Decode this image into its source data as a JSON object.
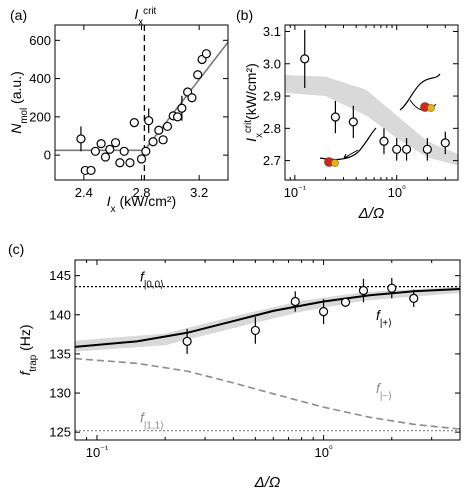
{
  "chart_data": [
    {
      "panel": "(a)",
      "type": "scatter",
      "xlabel_main": "I",
      "xlabel_sub": "x",
      "xlabel_unit": " (kW/cm²)",
      "ylabel_main": "N",
      "ylabel_sub": "mol",
      "ylabel_unit": " (a.u.)",
      "xlim": [
        2.2,
        3.4
      ],
      "ylim": [
        -130,
        680
      ],
      "xticks": [
        2.4,
        2.8,
        3.2
      ],
      "xtick_labels": [
        "2.4",
        "2.8",
        "3.2"
      ],
      "yticks": [
        0,
        200,
        400,
        600
      ],
      "ytick_labels": [
        "0",
        "200",
        "400",
        "600"
      ],
      "vline": {
        "x": 2.82,
        "label_main": "I",
        "label_sub": "x",
        "label_sup": "crit"
      },
      "fit": [
        {
          "x": 2.2,
          "y": 25
        },
        {
          "x": 2.82,
          "y": 25
        },
        {
          "x": 3.4,
          "y": 590
        }
      ],
      "points": [
        {
          "x": 2.38,
          "y": 85,
          "err": 65
        },
        {
          "x": 2.41,
          "y": -80
        },
        {
          "x": 2.45,
          "y": -80
        },
        {
          "x": 2.48,
          "y": 20
        },
        {
          "x": 2.52,
          "y": 60
        },
        {
          "x": 2.55,
          "y": -10
        },
        {
          "x": 2.58,
          "y": 30
        },
        {
          "x": 2.62,
          "y": 65
        },
        {
          "x": 2.65,
          "y": -40
        },
        {
          "x": 2.68,
          "y": 20
        },
        {
          "x": 2.72,
          "y": -40
        },
        {
          "x": 2.75,
          "y": 170
        },
        {
          "x": 2.8,
          "y": -20
        },
        {
          "x": 2.83,
          "y": 20
        },
        {
          "x": 2.85,
          "y": 180,
          "err": 65
        },
        {
          "x": 2.88,
          "y": 70
        },
        {
          "x": 2.92,
          "y": 130
        },
        {
          "x": 2.95,
          "y": 80
        },
        {
          "x": 2.98,
          "y": 150
        },
        {
          "x": 3.02,
          "y": 205
        },
        {
          "x": 3.05,
          "y": 200
        },
        {
          "x": 3.08,
          "y": 245,
          "err": 65
        },
        {
          "x": 3.12,
          "y": 330
        },
        {
          "x": 3.15,
          "y": 300
        },
        {
          "x": 3.19,
          "y": 420
        },
        {
          "x": 3.22,
          "y": 500
        },
        {
          "x": 3.25,
          "y": 530
        }
      ]
    },
    {
      "panel": "(b)",
      "type": "scatter",
      "xscale": "log",
      "xlabel": "Δ/Ω",
      "ylabel_main": "I",
      "ylabel_sub": "x",
      "ylabel_sup": "crit",
      "ylabel_unit": "(kW/cm²)",
      "xlim": [
        0.08,
        4.0
      ],
      "ylim": [
        2.64,
        3.12
      ],
      "xticks": [
        0.1,
        1
      ],
      "xtick_labels": [
        "10⁻¹",
        "10⁰"
      ],
      "yticks": [
        2.7,
        2.8,
        2.9,
        3.0,
        3.1
      ],
      "ytick_labels": [
        "2.7",
        "2.8",
        "2.9",
        "3.0",
        "3.1"
      ],
      "band_upper": [
        {
          "x": 0.08,
          "y": 2.965
        },
        {
          "x": 0.2,
          "y": 2.96
        },
        {
          "x": 0.5,
          "y": 2.92
        },
        {
          "x": 1.0,
          "y": 2.84
        },
        {
          "x": 2.0,
          "y": 2.76
        },
        {
          "x": 4.0,
          "y": 2.72
        }
      ],
      "band_lower": [
        {
          "x": 0.08,
          "y": 2.91
        },
        {
          "x": 0.2,
          "y": 2.9
        },
        {
          "x": 0.5,
          "y": 2.84
        },
        {
          "x": 1.0,
          "y": 2.77
        },
        {
          "x": 2.0,
          "y": 2.71
        },
        {
          "x": 4.0,
          "y": 2.685
        }
      ],
      "points": [
        {
          "x": 0.125,
          "y": 3.015,
          "err": 0.09
        },
        {
          "x": 0.25,
          "y": 2.835,
          "err": 0.05
        },
        {
          "x": 0.375,
          "y": 2.82,
          "err": 0.05
        },
        {
          "x": 0.75,
          "y": 2.76,
          "err": 0.04
        },
        {
          "x": 1.0,
          "y": 2.735,
          "err": 0.035
        },
        {
          "x": 1.25,
          "y": 2.735,
          "err": 0.035
        },
        {
          "x": 2.0,
          "y": 2.735,
          "err": 0.035
        },
        {
          "x": 3.0,
          "y": 2.755,
          "err": 0.035
        }
      ]
    },
    {
      "panel": "(c)",
      "type": "line",
      "xscale": "log",
      "xlabel": "Δ/Ω",
      "ylabel_main": "f",
      "ylabel_sub": "trap",
      "ylabel_unit": " (Hz)",
      "xlim": [
        0.08,
        4.0
      ],
      "ylim": [
        124,
        147
      ],
      "xticks": [
        0.1,
        1
      ],
      "xtick_labels": [
        "10⁻¹",
        "10⁰"
      ],
      "yticks": [
        125,
        130,
        135,
        140,
        145
      ],
      "ytick_labels": [
        "125",
        "130",
        "135",
        "140",
        "145"
      ],
      "hlines": [
        {
          "y": 143.6,
          "label_main": "f",
          "label_sub": "|0,0⟩",
          "color": "#000000"
        },
        {
          "y": 125.2,
          "label_main": "f",
          "label_sub": "|1,1⟩",
          "color": "#8c8c8c"
        }
      ],
      "series": [
        {
          "label_main": "f",
          "label_sub": "|+⟩",
          "color": "#000000",
          "style": "solid",
          "values": [
            {
              "x": 0.08,
              "y": 135.9
            },
            {
              "x": 0.15,
              "y": 136.6
            },
            {
              "x": 0.25,
              "y": 137.7
            },
            {
              "x": 0.4,
              "y": 139.2
            },
            {
              "x": 0.6,
              "y": 140.5
            },
            {
              "x": 1.0,
              "y": 141.7
            },
            {
              "x": 1.6,
              "y": 142.5
            },
            {
              "x": 2.5,
              "y": 143.0
            },
            {
              "x": 4.0,
              "y": 143.3
            }
          ]
        },
        {
          "label_main": "f",
          "label_sub": "|−⟩",
          "color": "#8c8c8c",
          "style": "dashed",
          "values": [
            {
              "x": 0.08,
              "y": 134.4
            },
            {
              "x": 0.15,
              "y": 133.8
            },
            {
              "x": 0.25,
              "y": 132.8
            },
            {
              "x": 0.4,
              "y": 131.3
            },
            {
              "x": 0.6,
              "y": 129.9
            },
            {
              "x": 1.0,
              "y": 128.2
            },
            {
              "x": 1.6,
              "y": 126.9
            },
            {
              "x": 2.5,
              "y": 126.0
            },
            {
              "x": 4.0,
              "y": 125.4
            }
          ]
        }
      ],
      "band_upper": [
        {
          "x": 0.08,
          "y": 136.7
        },
        {
          "x": 0.2,
          "y": 137.6
        },
        {
          "x": 0.4,
          "y": 139.8
        },
        {
          "x": 0.8,
          "y": 141.8
        },
        {
          "x": 1.5,
          "y": 142.9
        },
        {
          "x": 4.0,
          "y": 143.6
        }
      ],
      "band_lower": [
        {
          "x": 0.08,
          "y": 135.3
        },
        {
          "x": 0.2,
          "y": 136.1
        },
        {
          "x": 0.4,
          "y": 138.3
        },
        {
          "x": 0.8,
          "y": 140.4
        },
        {
          "x": 1.5,
          "y": 141.8
        },
        {
          "x": 4.0,
          "y": 142.8
        }
      ],
      "points": [
        {
          "x": 0.25,
          "y": 136.6,
          "err": 1.6
        },
        {
          "x": 0.5,
          "y": 138.0,
          "err": 1.7
        },
        {
          "x": 0.75,
          "y": 141.7,
          "err": 1.3
        },
        {
          "x": 1.0,
          "y": 140.4,
          "err": 1.6
        },
        {
          "x": 1.25,
          "y": 141.6,
          "err": 0.6
        },
        {
          "x": 1.5,
          "y": 143.1,
          "err": 1.5
        },
        {
          "x": 2.0,
          "y": 143.4,
          "err": 1.3
        },
        {
          "x": 2.5,
          "y": 142.1,
          "err": 1.1
        }
      ]
    }
  ]
}
